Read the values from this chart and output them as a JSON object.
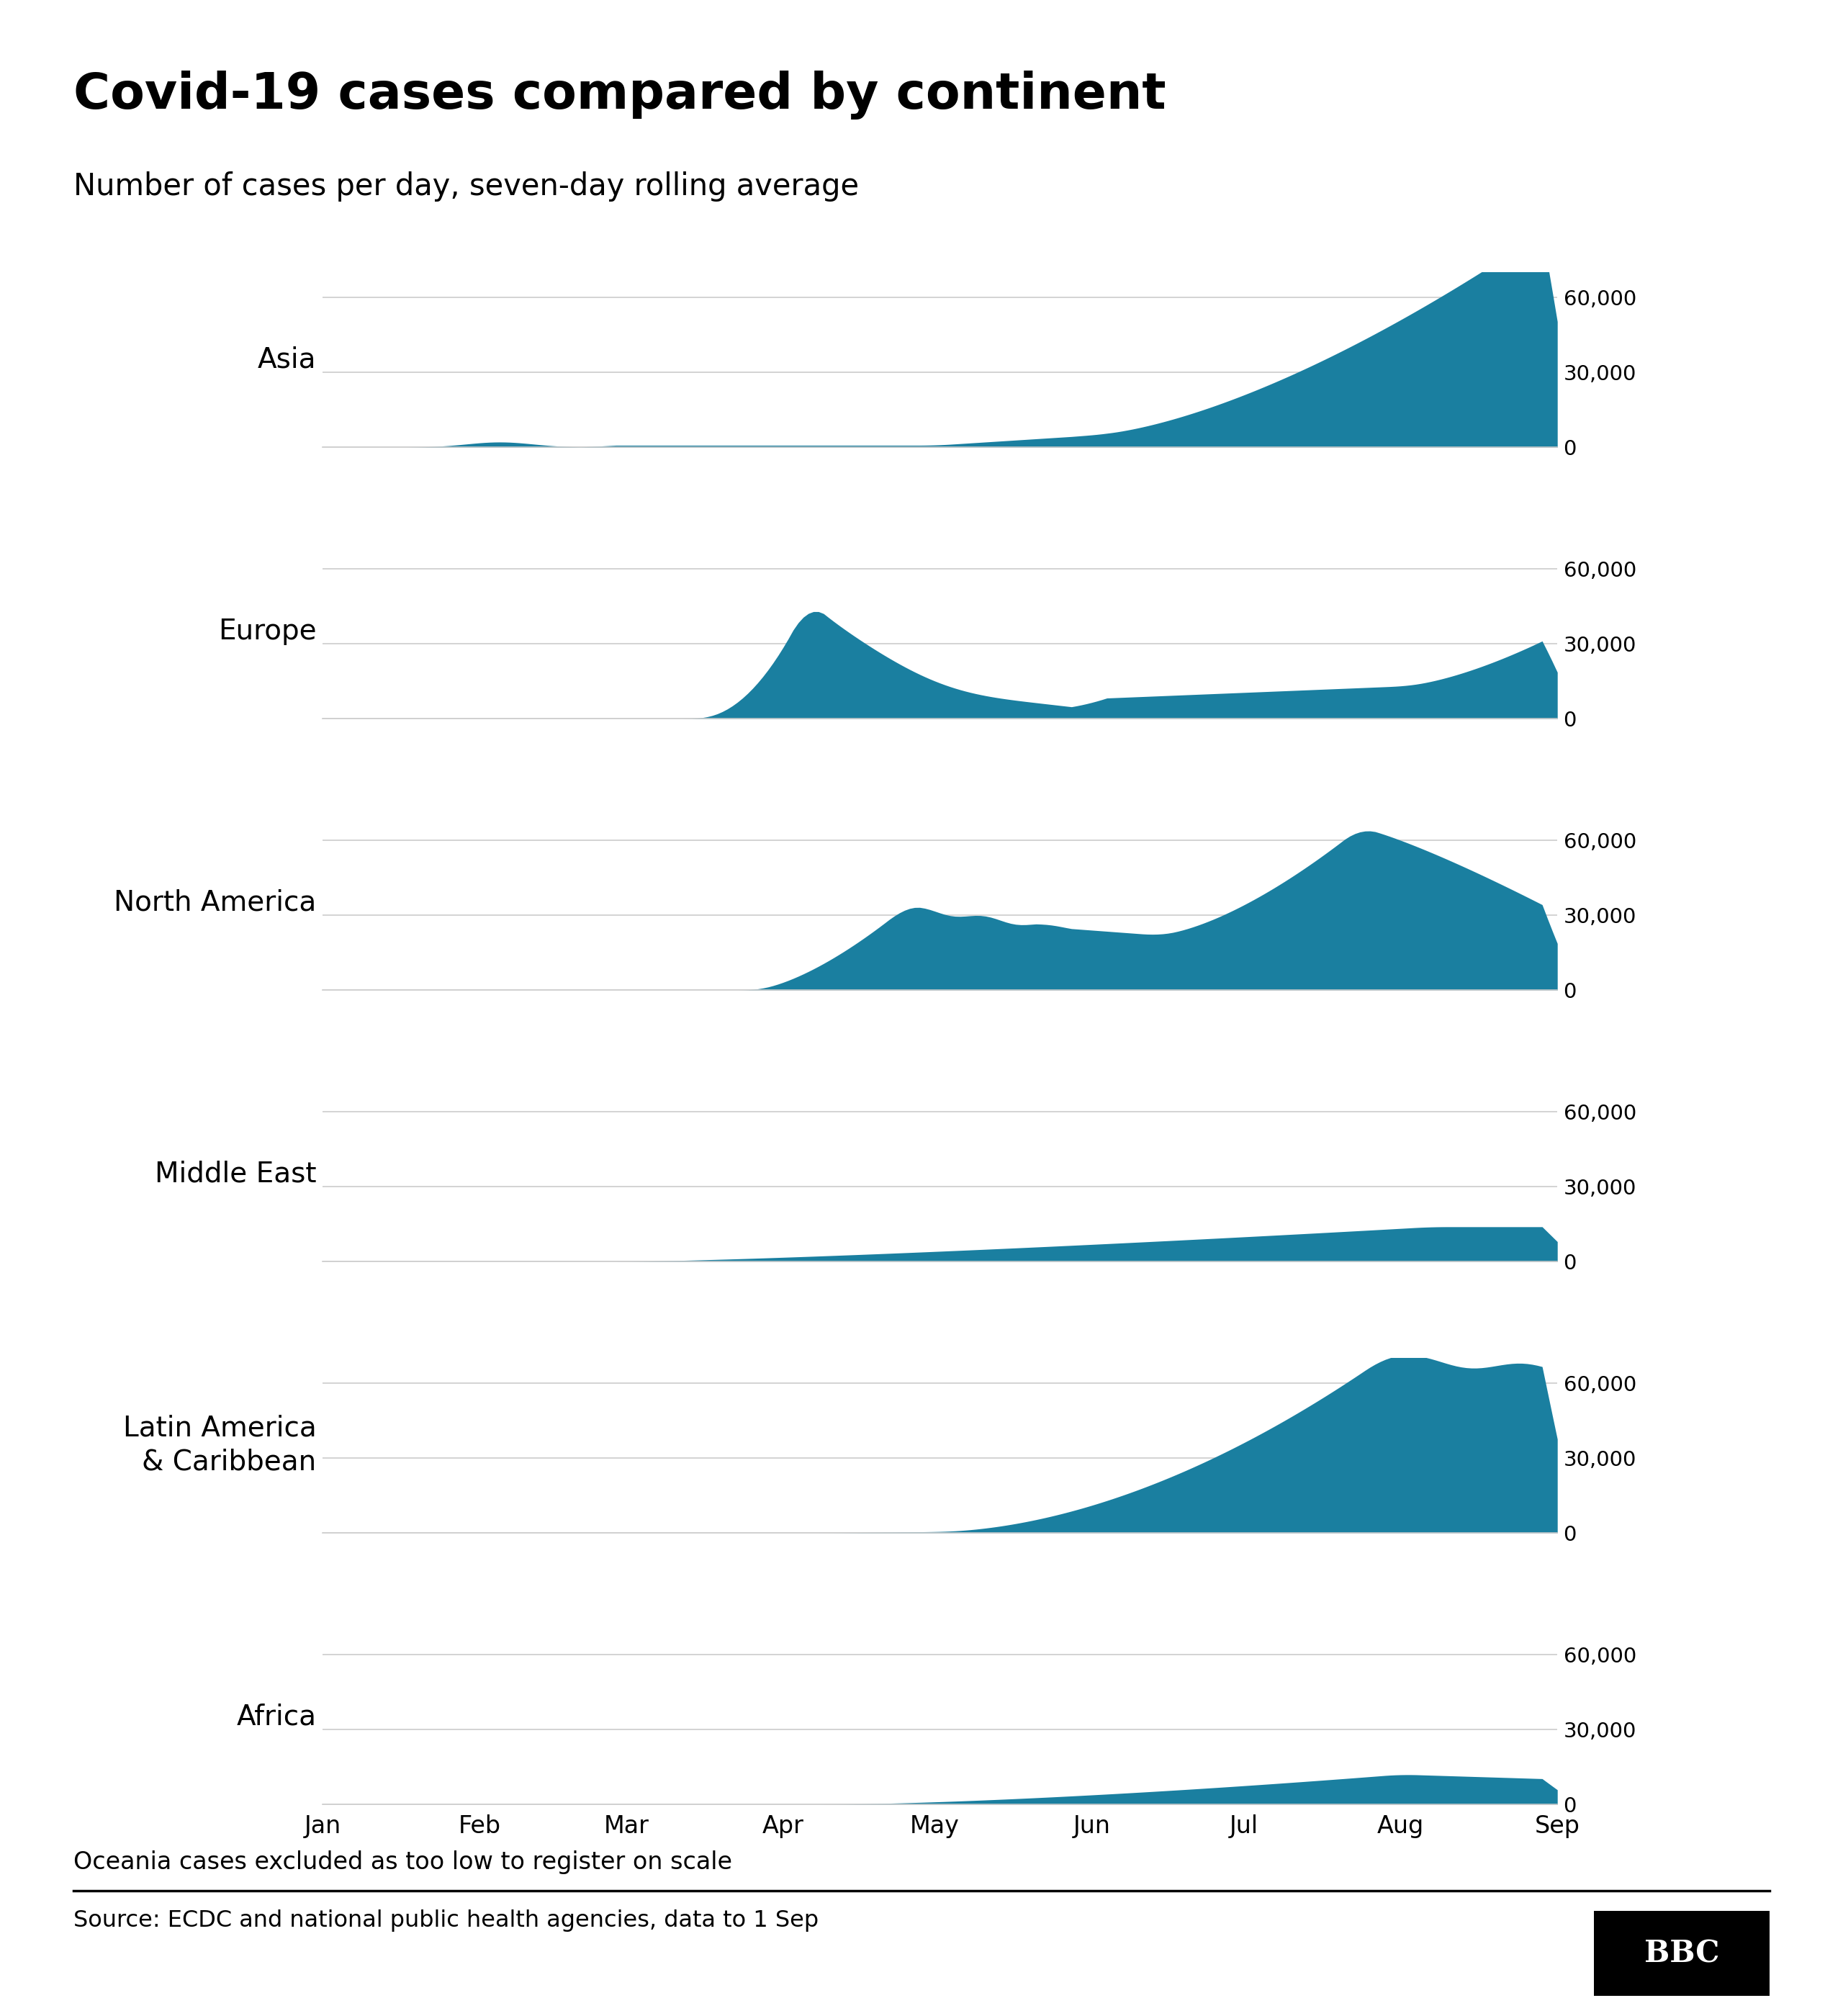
{
  "title": "Covid-19 cases compared by continent",
  "subtitle": "Number of cases per day, seven-day rolling average",
  "fill_color": "#1a7fa0",
  "bg_color": "#ffffff",
  "footnote": "Oceania cases excluded as too low to register on scale",
  "source": "Source: ECDC and national public health agencies, data to 1 Sep",
  "continents": [
    "Asia",
    "Europe",
    "North America",
    "Middle East",
    "Latin America\n& Caribbean",
    "Africa"
  ],
  "yticks": [
    0,
    30000,
    60000
  ],
  "ymax": 70000,
  "x_months": [
    "Jan",
    "Feb",
    "Mar",
    "Apr",
    "May",
    "Jun",
    "Jul",
    "Aug",
    "Sep"
  ],
  "month_starts": [
    0,
    31,
    60,
    91,
    121,
    152,
    182,
    213,
    244
  ],
  "n_days": 245
}
